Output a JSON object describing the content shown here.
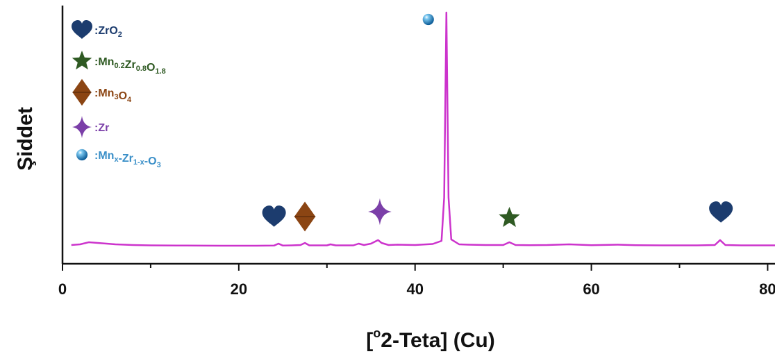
{
  "chart_data": {
    "type": "line",
    "title": "",
    "xlabel": "[°2-Teta] (Cu)",
    "xlabel_parts": {
      "sup": "o",
      "text": "2-Teta] (Cu)",
      "open": "["
    },
    "ylabel": "Şiddet",
    "xlim": [
      0,
      90
    ],
    "x_ticks": [
      0,
      20,
      40,
      60,
      80
    ],
    "x_tick_labels": [
      "0",
      "20",
      "40",
      "60",
      "80"
    ],
    "y_ticks_shown": false,
    "grid": false,
    "legend_position": "top-left",
    "line_color": "#cc33cc",
    "series": [
      {
        "x": [
          1.0,
          2.0,
          3.0,
          4.0,
          5.0,
          6.0,
          8.0,
          10.0,
          14.0,
          18.0,
          22.0,
          24.0,
          24.5,
          25.0,
          26.0,
          27.0,
          27.5,
          28.0,
          30.0,
          30.4,
          31.0,
          33.0,
          33.6,
          34.2,
          35.0,
          35.8,
          36.2,
          37.0,
          38.0,
          40.0,
          42.0,
          43.0,
          43.3,
          43.55,
          43.8,
          44.1,
          45.0,
          46.0,
          48.0,
          50.0,
          50.7,
          51.4,
          53.0,
          55.0,
          57.5,
          60.0,
          63.0,
          65.0,
          68.0,
          72.0,
          74.0,
          74.6,
          75.2,
          77.0,
          80.0,
          85.0,
          90.0
        ],
        "y": [
          2,
          3,
          6,
          5,
          4,
          3,
          2,
          1.5,
          1.2,
          1,
          1,
          1.2,
          4,
          1.2,
          1.5,
          2,
          5,
          1.5,
          1.5,
          3,
          1.5,
          1.5,
          4,
          2,
          4,
          9,
          5,
          2,
          2.5,
          2,
          3.5,
          8,
          70,
          335,
          70,
          10,
          3,
          2.5,
          2,
          2,
          6,
          2,
          1.8,
          2,
          3,
          1.8,
          2.5,
          1.8,
          1.5,
          1.5,
          2,
          9,
          2,
          1.5,
          1.5,
          1.2,
          1.2
        ]
      }
    ],
    "phase_markers": [
      {
        "phase": "ZrO2",
        "x": 24.0
      },
      {
        "phase": "Mn3O4",
        "x": 27.5
      },
      {
        "phase": "Zr",
        "x": 36.0
      },
      {
        "phase": "Mnx-Zr1-x-O3",
        "x": 41.5
      },
      {
        "phase": "Mn0.2Zr0.8O1.8",
        "x": 50.7
      },
      {
        "phase": "ZrO2",
        "x": 74.7
      }
    ],
    "legend": [
      {
        "symbol": "heart",
        "color": "#1c3c6e",
        "text_color": "#1c3c6e",
        "prefix": ":",
        "parts": [
          [
            "ZrO",
            ""
          ],
          [
            "2",
            "sub"
          ]
        ]
      },
      {
        "symbol": "star",
        "color": "#2f5a23",
        "text_color": "#2f5a23",
        "prefix": ":",
        "parts": [
          [
            "Mn",
            ""
          ],
          [
            "0.2",
            "sub"
          ],
          [
            "Zr",
            ""
          ],
          [
            "0.8",
            "sub"
          ],
          [
            "O",
            ""
          ],
          [
            "1.8",
            "sub"
          ]
        ]
      },
      {
        "symbol": "diamond",
        "color": "#8b4513",
        "text_color": "#8b4513",
        "prefix": ":",
        "parts": [
          [
            "Mn",
            ""
          ],
          [
            "3",
            "sub"
          ],
          [
            "O",
            ""
          ],
          [
            "4",
            "sub"
          ]
        ]
      },
      {
        "symbol": "sparkle",
        "color": "#7b3fa8",
        "text_color": "#7b3fa8",
        "prefix": ":",
        "parts": [
          [
            "Zr",
            ""
          ]
        ]
      },
      {
        "symbol": "sphere",
        "color": "#1e88c8",
        "text_color": "#3a8fc8",
        "prefix": ":",
        "parts": [
          [
            "Mn",
            ""
          ],
          [
            "x",
            "sub"
          ],
          [
            "-Zr",
            ""
          ],
          [
            "1-x",
            "sub"
          ],
          [
            "-O",
            ""
          ],
          [
            "3",
            "sub"
          ]
        ]
      }
    ]
  }
}
